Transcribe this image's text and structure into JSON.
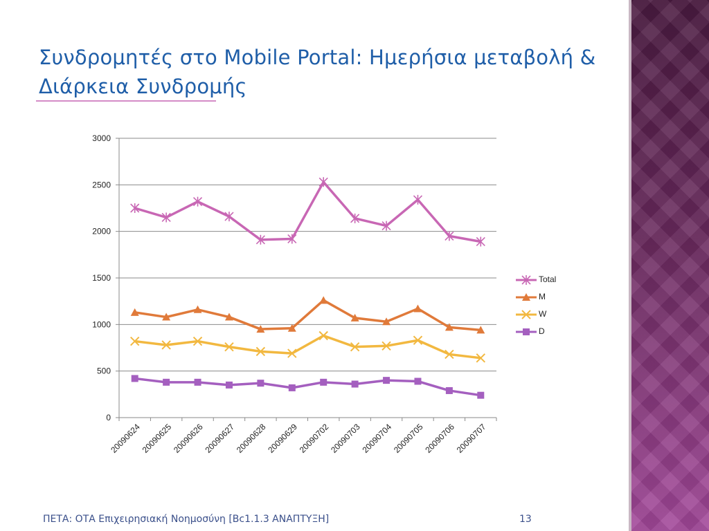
{
  "slide": {
    "title": "Συνδρομητές στο Mobile Portal: Ημερήσια μεταβολή & Διάρκεια Συνδρομής",
    "footer_left": "ΠΕΤΑ: ΟΤΑ Επιχειρησιακή Νοημοσύνη [Bc1.1.3 ΑΝΑΠΤΥΞΗ]",
    "page_number": "13",
    "colors": {
      "title": "#1f5ea8",
      "side_panel": "#6a2a5e"
    }
  },
  "chart_data": {
    "type": "line",
    "title": "",
    "xlabel": "",
    "ylabel": "",
    "ylim": [
      0,
      3000
    ],
    "yticks": [
      0,
      500,
      1000,
      1500,
      2000,
      2500,
      3000
    ],
    "grid": true,
    "legend_position": "right",
    "categories": [
      "20090624",
      "20090625",
      "20090626",
      "20090627",
      "20090628",
      "20090629",
      "20090702",
      "20090703",
      "20090704",
      "20090705",
      "20090706",
      "20090707"
    ],
    "series": [
      {
        "name": "Total",
        "color": "#c867b4",
        "marker": "star",
        "values": [
          2250,
          2150,
          2320,
          2160,
          1910,
          1920,
          2530,
          2140,
          2060,
          2340,
          1950,
          1890
        ]
      },
      {
        "name": "M",
        "color": "#e07a3a",
        "marker": "triangle",
        "values": [
          1130,
          1080,
          1160,
          1080,
          950,
          960,
          1260,
          1070,
          1030,
          1170,
          970,
          940
        ]
      },
      {
        "name": "W",
        "color": "#f2b840",
        "marker": "x",
        "values": [
          820,
          780,
          820,
          760,
          710,
          690,
          880,
          760,
          770,
          830,
          680,
          640
        ]
      },
      {
        "name": "D",
        "color": "#a45fbf",
        "marker": "square",
        "values": [
          420,
          380,
          380,
          350,
          370,
          320,
          380,
          360,
          400,
          390,
          290,
          240
        ]
      }
    ]
  }
}
